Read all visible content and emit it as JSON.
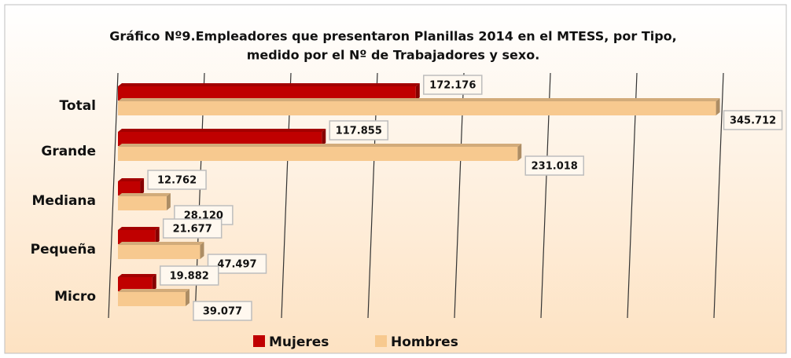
{
  "chart_data": {
    "type": "bar",
    "orientation": "horizontal",
    "title": [
      "Gráfico Nº9.Empleadores que presentaron Planillas 2014 en el MTESS, por Tipo,",
      "medido por el Nº de Trabajadores y sexo."
    ],
    "categories": [
      "Total",
      "Grande",
      "Mediana",
      "Pequeña",
      "Micro"
    ],
    "series": [
      {
        "name": "Mujeres",
        "color": "#c00000",
        "values": [
          172176,
          117855,
          12762,
          21677,
          19882
        ],
        "value_labels": [
          "172.176",
          "117.855",
          "12.762",
          "21.677",
          "19.882"
        ]
      },
      {
        "name": "Hombres",
        "color": "#f7c98f",
        "values": [
          345712,
          231018,
          28120,
          47497,
          39077
        ],
        "value_labels": [
          "345.712",
          "231.018",
          "28.120",
          "47.497",
          "39.077"
        ]
      }
    ],
    "xlim": [
      0,
      350000
    ],
    "xticks": [
      0,
      50000,
      100000,
      150000,
      200000,
      250000,
      300000,
      350000
    ],
    "grid": true,
    "legend": "bottom"
  }
}
